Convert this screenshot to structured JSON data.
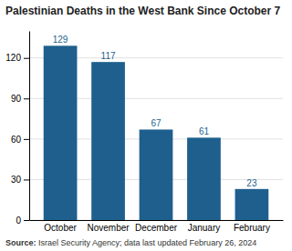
{
  "chart_data": {
    "type": "bar",
    "title": "Palestinian Deaths in the West Bank Since October 7",
    "categories": [
      "October",
      "November",
      "December",
      "January",
      "February"
    ],
    "values": [
      129,
      117,
      67,
      61,
      23
    ],
    "color": "#1e5f8e",
    "ylim": [
      0,
      140
    ],
    "yticks": [
      0,
      30,
      60,
      90,
      120
    ],
    "grid": true,
    "data_labels": true,
    "annotations": [
      "Source:",
      " Israel Security Agency; data last updated February 26, 2024"
    ]
  }
}
